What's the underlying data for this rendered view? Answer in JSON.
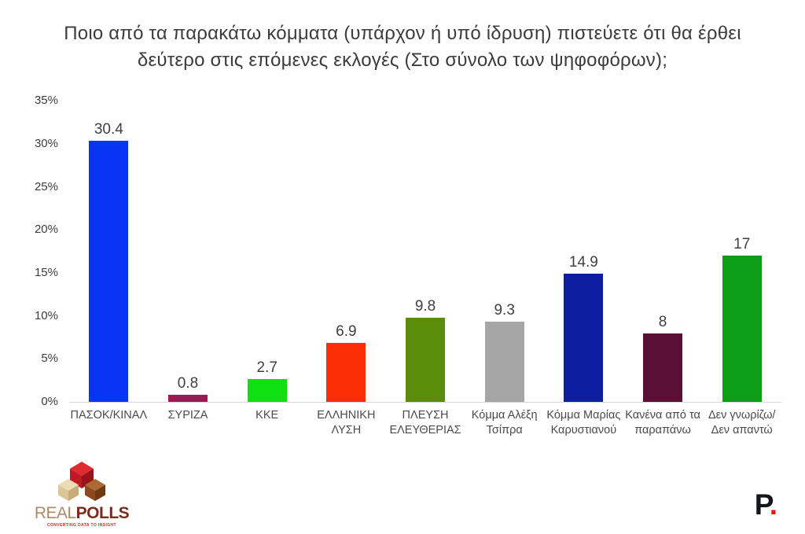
{
  "chart_data": {
    "type": "bar",
    "title": "Ποιο από τα παρακάτω κόμματα (υπάρχον ή υπό ίδρυση) πιστεύετε ότι θα έρθει δεύτερο στις επόμενες εκλογές (Στο σύνολο των ψηφοφόρων);",
    "categories": [
      "ΠΑΣΟΚ/ΚΙΝΑΛ",
      "ΣΥΡΙΖΑ",
      "ΚΚΕ",
      "ΕΛΛΗΝΙΚΗ ΛΥΣΗ",
      "ΠΛΕΥΣΗ ΕΛΕΥΘΕΡΙΑΣ",
      "Κόμμα Αλέξη Τσίπρα",
      "Κόμμα Μαρίας Καρυστιανού",
      "Κανένα από τα παραπάνω",
      "Δεν γνωρίζω/Δεν απαντώ"
    ],
    "label_lines": [
      [
        "ΠΑΣΟΚ/ΚΙΝΑΛ"
      ],
      [
        "ΣΥΡΙΖΑ"
      ],
      [
        "ΚΚΕ"
      ],
      [
        "ΕΛΛΗΝΙΚΗ",
        "ΛΥΣΗ"
      ],
      [
        "ΠΛΕΥΣΗ",
        "ΕΛΕΥΘΕΡΙΑΣ"
      ],
      [
        "Κόμμα Αλέξη",
        "Τσίπρα"
      ],
      [
        "Κόμμα Μαρίας",
        "Καρυστιανού"
      ],
      [
        "Κανένα από  τα",
        "παραπάνω"
      ],
      [
        "Δεν γνωρίζω/",
        "Δεν απαντώ"
      ]
    ],
    "values": [
      30.4,
      0.8,
      2.7,
      6.9,
      9.8,
      9.3,
      14.9,
      8,
      17
    ],
    "value_labels": [
      "30.4",
      "0.8",
      "2.7",
      "6.9",
      "9.8",
      "9.3",
      "14.9",
      "8",
      "17"
    ],
    "bar_colors": [
      "#0933f5",
      "#9b1b55",
      "#10e010",
      "#fb2f05",
      "#5b8d0b",
      "#a6a6a6",
      "#0e1ea3",
      "#5a0f34",
      "#0c9e16"
    ],
    "xlabel": "",
    "ylabel": "",
    "ylim": [
      0,
      35
    ],
    "yticks": [
      "35%",
      "30%",
      "25%",
      "20%",
      "15%",
      "10%",
      "5%",
      "0%"
    ],
    "grid": false,
    "legend": false
  },
  "footer": {
    "realpolls": {
      "real": "REAL",
      "polls": "POLLS",
      "tagline": "CONVERTING DATA TO INSIGHT"
    },
    "brand": {
      "letter": "P",
      "dot": "."
    }
  }
}
